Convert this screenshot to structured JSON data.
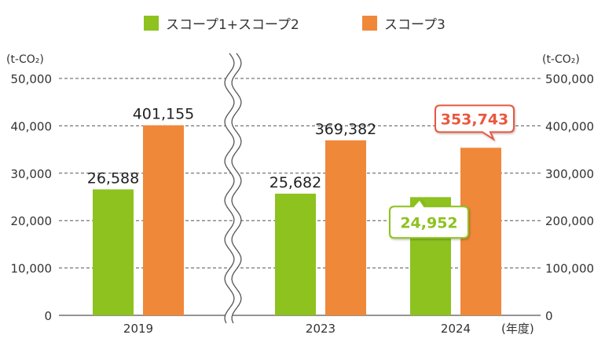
{
  "chart_data": {
    "type": "bar",
    "categories": [
      "2019",
      "2023",
      "2024"
    ],
    "series": [
      {
        "name": "スコープ1+スコープ2",
        "values": [
          26588,
          25682,
          24952
        ],
        "axis": "left",
        "color": "#8dc21f"
      },
      {
        "name": "スコープ3",
        "values": [
          401155,
          369382,
          353743
        ],
        "axis": "right",
        "color": "#f0883a"
      }
    ],
    "data_labels": [
      [
        "26,588",
        "25,682",
        "24,952"
      ],
      [
        "401,155",
        "369,382",
        "353,743"
      ]
    ],
    "highlight_category": "2024",
    "axis_break_after": "2019",
    "left_axis": {
      "unit": "(t-CO₂)",
      "ylim": [
        0,
        50000
      ],
      "ticks": [
        "0",
        "10,000",
        "20,000",
        "30,000",
        "40,000",
        "50,000"
      ]
    },
    "right_axis": {
      "unit": "(t-CO₂)",
      "ylim": [
        0,
        500000
      ],
      "ticks": [
        "0",
        "100,000",
        "200,000",
        "300,000",
        "400,000",
        "500,000"
      ]
    },
    "xlabel": "(年度)",
    "grid": true,
    "legend_position": "top-center",
    "colors": {
      "highlight_green": "#8dc21f",
      "highlight_orange": "#e9573f"
    }
  }
}
